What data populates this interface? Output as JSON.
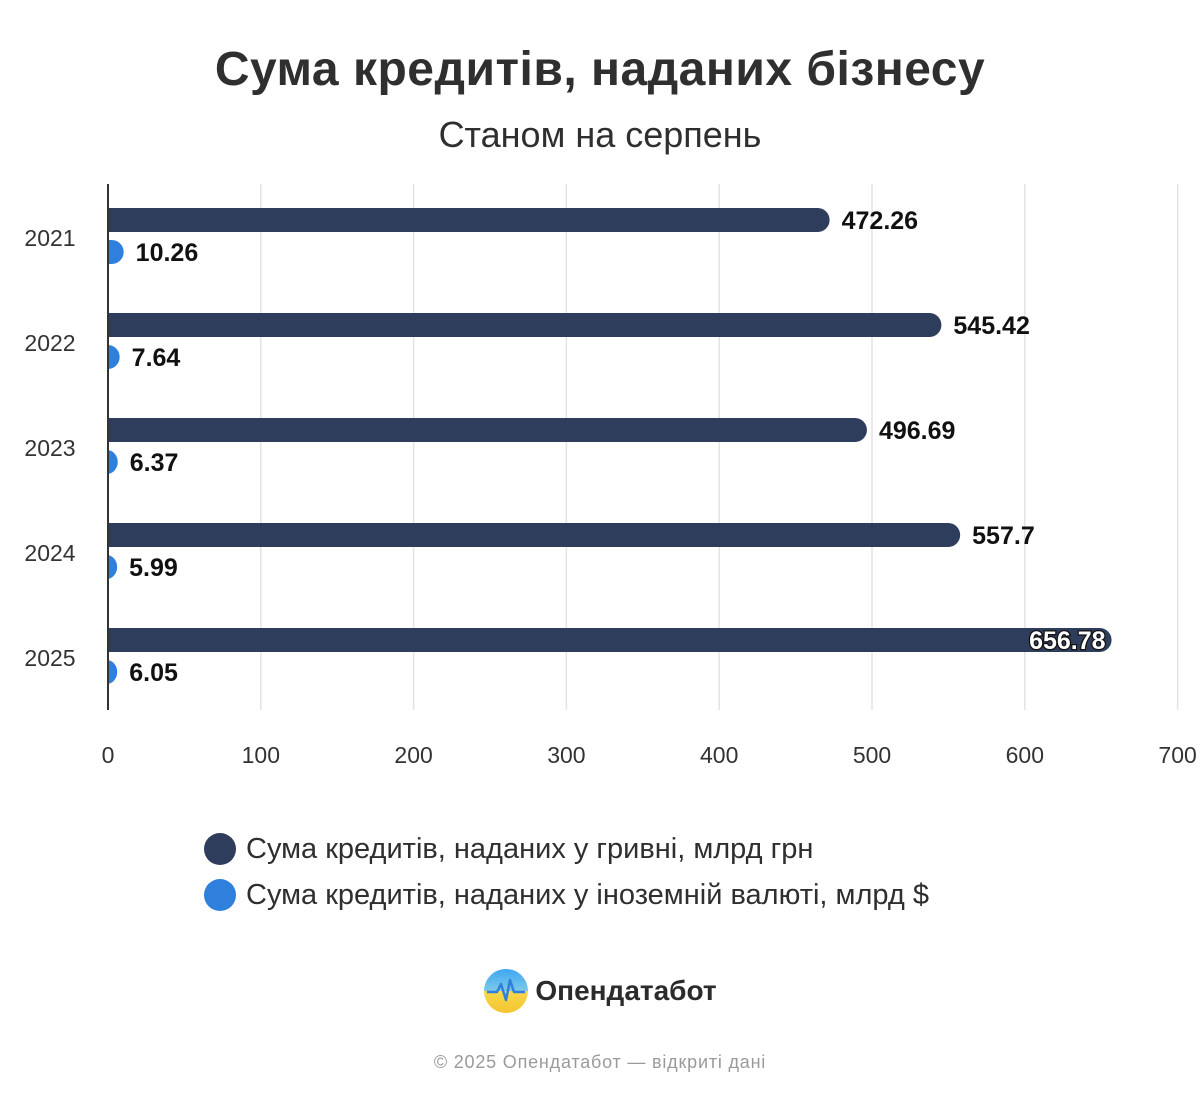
{
  "chart_data": {
    "type": "bar",
    "orientation": "horizontal",
    "title": "Сума кредитів, наданих бізнесу",
    "subtitle": "Станом на серпень",
    "categories": [
      "2021",
      "2022",
      "2023",
      "2024",
      "2025"
    ],
    "series": [
      {
        "name": "Сума кредитів, наданих у гривні, млрд грн",
        "color": "#2e3d5c",
        "values": [
          472.26,
          545.42,
          496.69,
          557.7,
          656.78
        ],
        "labels": [
          "472.26",
          "545.42",
          "496.69",
          "557.7",
          "656.78"
        ]
      },
      {
        "name": "Сума кредитів, наданих у іноземній валюті, млрд $",
        "color": "#2f80dc",
        "values": [
          10.26,
          7.64,
          6.37,
          5.99,
          6.05
        ],
        "labels": [
          "10.26",
          "7.64",
          "6.37",
          "5.99",
          "6.05"
        ]
      }
    ],
    "xlim": [
      0,
      700
    ],
    "xticks": [
      "0",
      "100",
      "200",
      "300",
      "400",
      "500",
      "600",
      "700"
    ],
    "grid": true,
    "legend": "bottom"
  },
  "brand": {
    "name": "Опендатабот",
    "logo_icon": "opendatabot-logo-icon"
  },
  "footer": "© 2025 Опендатабот — відкриті дані"
}
